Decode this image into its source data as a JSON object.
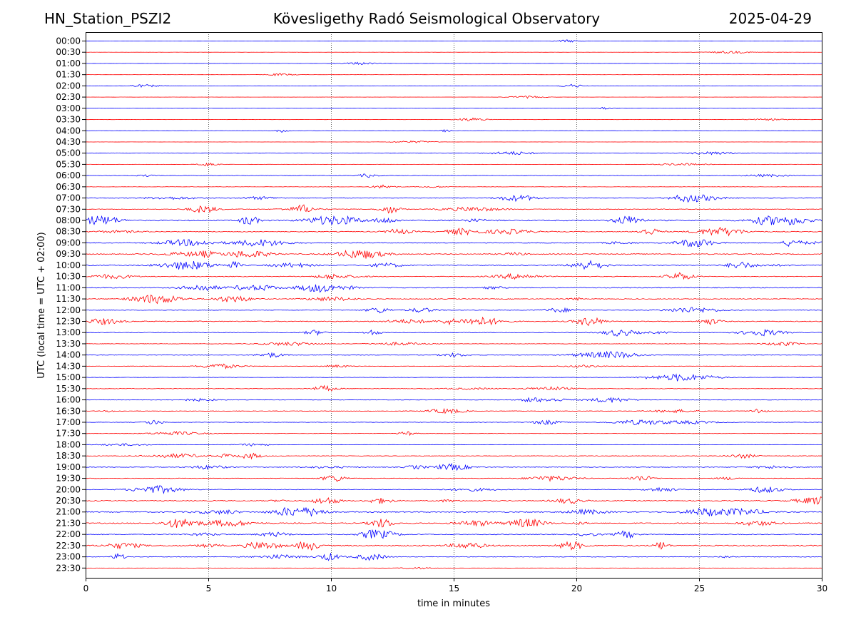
{
  "header": {
    "station": "HN_Station_PSZI2",
    "observatory": "Kövesligethy Radó Seismological Observatory",
    "date": "2025-04-29"
  },
  "chart_data": {
    "type": "line",
    "title": "Kövesligethy Radó Seismological Observatory",
    "xlabel": "time in minutes",
    "ylabel": "UTC (local time = UTC + 02:00)",
    "xlim": [
      0,
      30
    ],
    "x_ticks": [
      "0",
      "5",
      "10",
      "15",
      "20",
      "25",
      "30"
    ],
    "x_tick_values": [
      0,
      5,
      10,
      15,
      20,
      25,
      30
    ],
    "grid": "vertical dotted at major x ticks",
    "row_labels": [
      "00:00",
      "00:30",
      "01:00",
      "01:30",
      "02:00",
      "02:30",
      "03:00",
      "03:30",
      "04:00",
      "04:30",
      "05:00",
      "05:30",
      "06:00",
      "06:30",
      "07:00",
      "07:30",
      "08:00",
      "08:30",
      "09:00",
      "09:30",
      "10:00",
      "10:30",
      "11:00",
      "11:30",
      "12:00",
      "12:30",
      "13:00",
      "13:30",
      "14:00",
      "14:30",
      "15:00",
      "15:30",
      "16:00",
      "16:30",
      "17:00",
      "17:30",
      "18:00",
      "18:30",
      "19:00",
      "19:30",
      "20:00",
      "20:30",
      "21:00",
      "21:30",
      "22:00",
      "22:30",
      "23:00",
      "23:30"
    ],
    "series_colors": [
      "#0000ff",
      "#ff0000"
    ],
    "activity": [
      0.3,
      0.3,
      0.3,
      0.3,
      0.4,
      0.3,
      0.3,
      0.5,
      0.5,
      0.3,
      0.6,
      0.5,
      0.8,
      0.6,
      1.2,
      1.3,
      2.2,
      1.6,
      1.5,
      1.8,
      1.7,
      1.3,
      1.6,
      1.3,
      1.0,
      1.6,
      1.2,
      0.8,
      1.1,
      0.8,
      0.7,
      0.9,
      0.9,
      0.9,
      0.9,
      0.6,
      0.6,
      0.9,
      1.3,
      1.1,
      1.2,
      1.6,
      2.0,
      1.9,
      1.6,
      2.0,
      1.2,
      0.3
    ]
  }
}
